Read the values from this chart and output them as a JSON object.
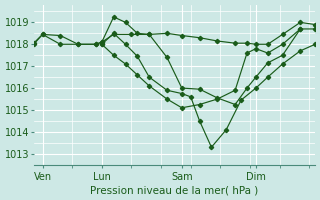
{
  "xlabel": "Pression niveau de la mer( hPa )",
  "ylim": [
    1012.5,
    1019.8
  ],
  "xlim": [
    0,
    9.5
  ],
  "yticks": [
    1013,
    1014,
    1015,
    1016,
    1017,
    1018,
    1019
  ],
  "xtick_positions": [
    0.3,
    2.3,
    5.0,
    7.5
  ],
  "xtick_labels": [
    "Ven",
    "Lun",
    "Sam",
    "Dim"
  ],
  "vline_positions": [
    0.3,
    2.3,
    5.0,
    7.5
  ],
  "bg_color": "#cde8e5",
  "line_color": "#1a5c1a",
  "grid_color": "#ffffff",
  "lines": [
    {
      "x": [
        0.0,
        0.3,
        0.9,
        1.5,
        2.1,
        2.3,
        2.7,
        3.3,
        3.9,
        4.5,
        5.0,
        5.6,
        6.2,
        6.8,
        7.2,
        7.5,
        7.9,
        8.4,
        9.0,
        9.5
      ],
      "y": [
        1018.05,
        1018.45,
        1018.4,
        1018.0,
        1018.0,
        1018.1,
        1018.45,
        1018.45,
        1018.45,
        1018.5,
        1018.4,
        1018.3,
        1018.15,
        1018.05,
        1018.05,
        1018.0,
        1018.0,
        1018.45,
        1019.0,
        1018.9
      ]
    },
    {
      "x": [
        0.0,
        0.3,
        0.9,
        1.5,
        2.1,
        2.3,
        2.7,
        3.1,
        3.5,
        3.9,
        4.5,
        5.0,
        5.6,
        6.2,
        6.8,
        7.2,
        7.5,
        7.9,
        8.4,
        9.0,
        9.5
      ],
      "y": [
        1018.0,
        1018.45,
        1018.0,
        1018.0,
        1018.0,
        1018.1,
        1019.25,
        1019.0,
        1018.5,
        1018.45,
        1017.4,
        1016.0,
        1015.95,
        1015.55,
        1015.25,
        1016.0,
        1016.5,
        1017.15,
        1017.5,
        1018.7,
        1018.7
      ]
    },
    {
      "x": [
        2.3,
        2.7,
        3.1,
        3.5,
        3.9,
        4.5,
        5.0,
        5.3,
        5.6,
        6.0,
        6.5,
        7.0,
        7.5,
        7.9,
        8.4,
        9.0,
        9.5
      ],
      "y": [
        1018.0,
        1018.5,
        1018.0,
        1017.45,
        1016.5,
        1015.9,
        1015.75,
        1015.6,
        1014.5,
        1013.3,
        1014.1,
        1015.45,
        1016.0,
        1016.5,
        1017.1,
        1017.7,
        1018.0
      ]
    },
    {
      "x": [
        2.3,
        2.7,
        3.1,
        3.5,
        3.9,
        4.5,
        5.0,
        5.6,
        6.2,
        6.8,
        7.2,
        7.5,
        7.9,
        8.4,
        9.0
      ],
      "y": [
        1018.0,
        1017.5,
        1017.1,
        1016.6,
        1016.1,
        1015.5,
        1015.1,
        1015.25,
        1015.5,
        1015.9,
        1017.6,
        1017.8,
        1017.6,
        1018.0,
        1018.7
      ]
    }
  ]
}
